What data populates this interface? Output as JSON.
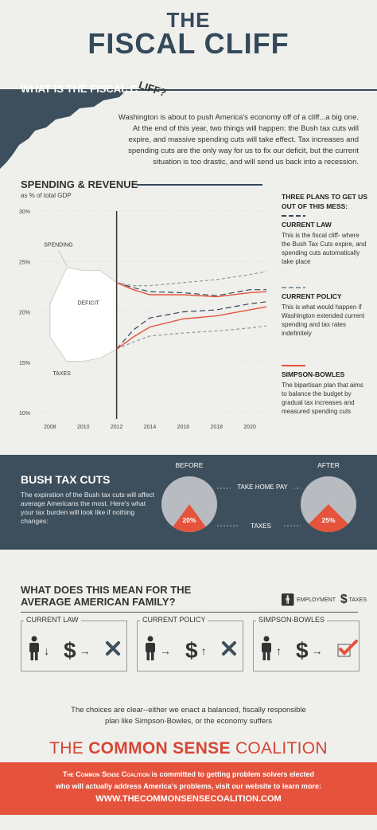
{
  "header": {
    "the": "THE",
    "title": "FISCAL CLIFF"
  },
  "intro": {
    "heading": "WHAT IS THE FISCAL C",
    "heading_tail": "LIFF?",
    "body": "Washington is about to push America's economy off of a cliff...a big one. At the end of this year, two things will happen: the Bush tax cuts will expire, and massive spending cuts will take effect. Tax increases and spending cuts are the only way for us to fix our deficit, but the current situation is too drastic, and will send us back into a recession."
  },
  "chart_data": {
    "type": "line",
    "title": "SPENDING & REVENUE",
    "subtitle": "as % of total GDP",
    "ylabel": "",
    "xlabel": "",
    "ylim": [
      10,
      30
    ],
    "xlim": [
      2007,
      2021
    ],
    "y_ticks": [
      "30%",
      "25%",
      "20%",
      "15%",
      "10%"
    ],
    "x_ticks": [
      "2008",
      "2010",
      "2012",
      "2014",
      "2016",
      "2018",
      "2020"
    ],
    "area_labels": {
      "spending": "SPENDING",
      "deficit": "DEFICIT",
      "taxes": "TAXES"
    },
    "historical": {
      "spending": [
        [
          2008,
          20.8
        ],
        [
          2009,
          24.4
        ],
        [
          2010,
          24.1
        ],
        [
          2011,
          24.1
        ],
        [
          2012,
          22.9
        ]
      ],
      "taxes": [
        [
          2008,
          17.5
        ],
        [
          2009,
          15.1
        ],
        [
          2010,
          15.1
        ],
        [
          2011,
          15.4
        ],
        [
          2012,
          16.3
        ]
      ]
    },
    "series": [
      {
        "name": "CURRENT LAW",
        "style": "dashed",
        "color": "#34495a",
        "spending": [
          [
            2012,
            22.9
          ],
          [
            2013,
            22.4
          ],
          [
            2014,
            22.0
          ],
          [
            2016,
            21.9
          ],
          [
            2018,
            21.6
          ],
          [
            2020,
            22.2
          ],
          [
            2021,
            22.2
          ]
        ],
        "revenue": [
          [
            2012,
            16.3
          ],
          [
            2013,
            18.2
          ],
          [
            2014,
            19.4
          ],
          [
            2016,
            20.0
          ],
          [
            2018,
            20.2
          ],
          [
            2020,
            20.8
          ],
          [
            2021,
            21.0
          ]
        ]
      },
      {
        "name": "CURRENT POLICY",
        "style": "dashed",
        "color": "#8a9aa4",
        "spending": [
          [
            2012,
            22.9
          ],
          [
            2013,
            22.6
          ],
          [
            2014,
            22.6
          ],
          [
            2016,
            22.9
          ],
          [
            2018,
            23.2
          ],
          [
            2020,
            23.7
          ],
          [
            2021,
            24.0
          ]
        ],
        "revenue": [
          [
            2012,
            16.3
          ],
          [
            2013,
            17.0
          ],
          [
            2014,
            17.6
          ],
          [
            2016,
            17.9
          ],
          [
            2018,
            18.1
          ],
          [
            2020,
            18.4
          ],
          [
            2021,
            18.6
          ]
        ]
      },
      {
        "name": "SIMPSON-BOWLES",
        "style": "solid",
        "color": "#e5533d",
        "spending": [
          [
            2012,
            22.9
          ],
          [
            2013,
            22.2
          ],
          [
            2014,
            21.7
          ],
          [
            2016,
            21.7
          ],
          [
            2018,
            21.5
          ],
          [
            2020,
            21.9
          ],
          [
            2021,
            22.0
          ]
        ],
        "revenue": [
          [
            2012,
            16.3
          ],
          [
            2013,
            17.5
          ],
          [
            2014,
            18.5
          ],
          [
            2016,
            19.3
          ],
          [
            2018,
            19.6
          ],
          [
            2020,
            20.2
          ],
          [
            2021,
            20.5
          ]
        ]
      }
    ]
  },
  "plans": {
    "heading": "THREE PLANS TO GET US OUT OF THIS MESS:",
    "items": [
      {
        "title": "CURRENT LAW",
        "text": "This is the fiscal cliff- where the Bush Tax Cuts expire, and spending cuts automatically take place",
        "color": "#34495a"
      },
      {
        "title": "CURRENT POLICY",
        "text": "This is what would happen if Washington extended current spending and tax rates indefinitely",
        "color": "#8a9aa4"
      },
      {
        "title": "SIMPSON-BOWLES",
        "text": "The bipartisan plan that aims to balance the budget by gradual tax increases and measured spending cuts",
        "color": "#e5533d"
      }
    ]
  },
  "bush": {
    "title": "BUSH TAX CUTS",
    "text": "The expiration of the Bush tax cuts will affect average Americans the most. Here's what your tax burden will look like if nothing changes:",
    "before_label": "BEFORE",
    "after_label": "AFTER",
    "take_home": "TAKE HOME PAY",
    "taxes": "TAXES",
    "before_pct": "20%",
    "after_pct": "25%",
    "before_value": 20,
    "after_value": 25
  },
  "family": {
    "heading_line1": "WHAT DOES THIS MEAN FOR THE",
    "heading_line2": "AVERAGE AMERICAN FAMILY?",
    "legend_employment": "EMPLOYMENT",
    "legend_taxes": "TAXES",
    "boxes": [
      {
        "label": "CURRENT LAW",
        "employment": "down",
        "taxes": "right",
        "result": "x"
      },
      {
        "label": "CURRENT POLICY",
        "employment": "right",
        "taxes": "up",
        "result": "x"
      },
      {
        "label": "SIMPSON-BOWLES",
        "employment": "up",
        "taxes": "right",
        "result": "check"
      }
    ]
  },
  "conclusion": {
    "line1": "The choices are clear--either we enact a balanced, fiscally responsible",
    "line2": "plan like Simpson-Bowles, or the economy suffers"
  },
  "footer": {
    "title_pre": "THE ",
    "title_bold": "COMMON SENSE",
    "title_post": " COALITION",
    "org": "The Common Sense Coalition",
    "line1_rest": " is committed to getting problem solvers elected",
    "line2": "who will actually address  America's problems, visit our website to learn more:",
    "url": "WWW.THECOMMONSENSECOALITION.COM"
  },
  "colors": {
    "navy": "#3d4f5c",
    "red": "#e5533d",
    "gray": "#b8bcc0"
  }
}
